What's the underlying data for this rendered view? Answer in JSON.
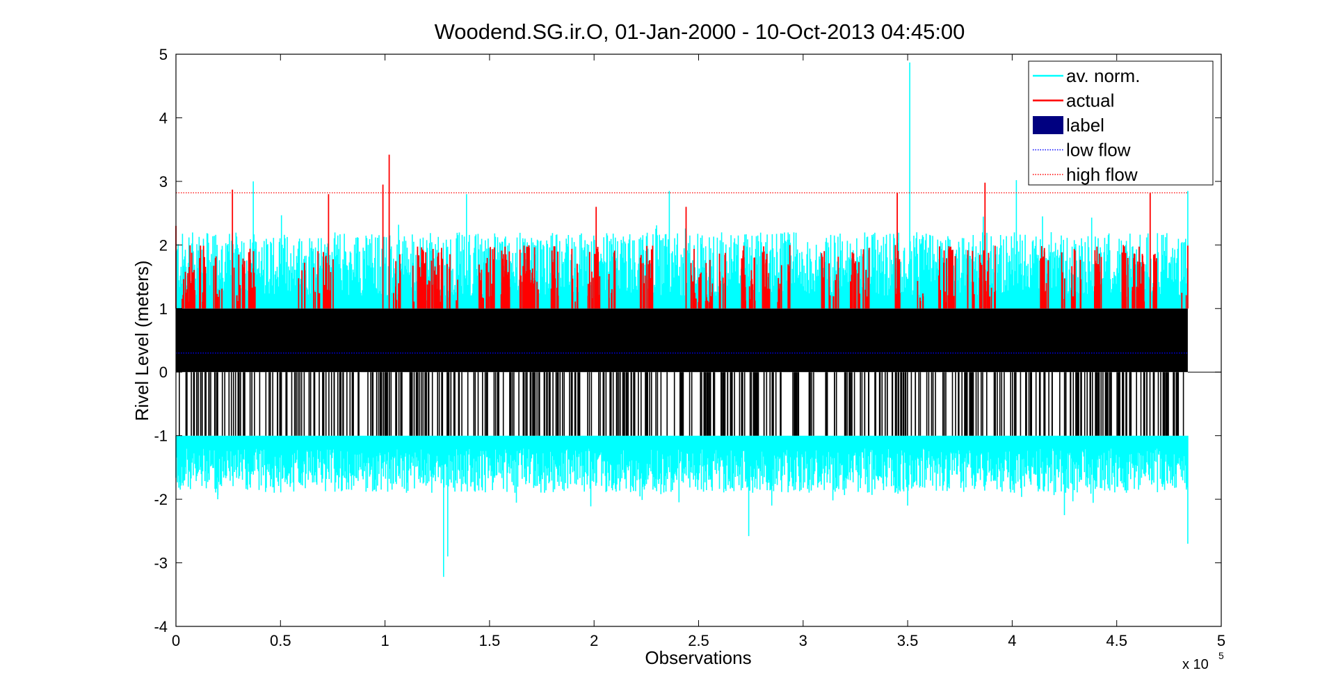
{
  "chart_data": {
    "type": "line",
    "title": "Woodend.SG.ir.O, 01-Jan-2000 - 10-Oct-2013 04:45:00",
    "xlabel": "Observations",
    "ylabel": "Rivel Level (meters)",
    "x_exponent_prefix": "x 10",
    "x_exponent_power": "5",
    "xlim": [
      0,
      5
    ],
    "ylim": [
      -4,
      5
    ],
    "x_ticks": [
      0,
      0.5,
      1,
      1.5,
      2,
      2.5,
      3,
      3.5,
      4,
      4.5,
      5
    ],
    "x_tick_labels": [
      "0",
      "0.5",
      "1",
      "1.5",
      "2",
      "2.5",
      "3",
      "3.5",
      "4",
      "4.5",
      "5"
    ],
    "y_ticks": [
      5,
      4,
      3,
      2,
      1,
      0,
      -1,
      -2,
      -3,
      -4
    ],
    "y_tick_labels": [
      "5",
      "4",
      "3",
      "2",
      "1",
      "0",
      "-1",
      "-2",
      "-3",
      "-4"
    ],
    "grid": false,
    "legend_position": "top-right",
    "x_extent": [
      0,
      4.84
    ],
    "series": [
      {
        "name": "av. norm.",
        "style": "solid",
        "color": "#00ffff",
        "typical_upper_range": [
          1.2,
          2.2
        ],
        "typical_lower_range": [
          -1.2,
          -1.9
        ],
        "peaks": [
          {
            "x": 0.37,
            "y": 3.0
          },
          {
            "x": 1.39,
            "y": 2.8
          },
          {
            "x": 2.36,
            "y": 2.85
          },
          {
            "x": 3.51,
            "y": 4.87
          },
          {
            "x": 4.02,
            "y": 3.02
          },
          {
            "x": 4.84,
            "y": 2.85
          },
          {
            "x": 1.28,
            "y": -3.22
          },
          {
            "x": 1.3,
            "y": -2.9
          },
          {
            "x": 2.74,
            "y": -2.58
          },
          {
            "x": 4.84,
            "y": -2.7
          },
          {
            "x": 4.25,
            "y": -2.25
          },
          {
            "x": 2.85,
            "y": -2.1
          },
          {
            "x": 0.2,
            "y": -2.0
          },
          {
            "x": 3.5,
            "y": -2.1
          }
        ]
      },
      {
        "name": "actual",
        "style": "solid",
        "color": "#ff0000",
        "typical_upper_range": [
          1.1,
          2.0
        ],
        "peaks": [
          {
            "x": 0.0,
            "y": 2.3
          },
          {
            "x": 0.27,
            "y": 2.87
          },
          {
            "x": 0.73,
            "y": 2.8
          },
          {
            "x": 0.99,
            "y": 2.95
          },
          {
            "x": 1.02,
            "y": 3.42
          },
          {
            "x": 2.01,
            "y": 2.6
          },
          {
            "x": 2.44,
            "y": 2.6
          },
          {
            "x": 3.45,
            "y": 2.82
          },
          {
            "x": 3.87,
            "y": 2.98
          },
          {
            "x": 4.66,
            "y": 2.82
          }
        ]
      },
      {
        "name": "label",
        "style": "filled band",
        "color": "#000080",
        "rendered_color": "#000000",
        "values": [
          0,
          1
        ],
        "downward_to": -1
      },
      {
        "name": "low flow",
        "style": "dotted",
        "color": "#0000ff",
        "y": 0.3
      },
      {
        "name": "high flow",
        "style": "dotted",
        "color": "#ff0000",
        "y": 2.82
      }
    ]
  }
}
